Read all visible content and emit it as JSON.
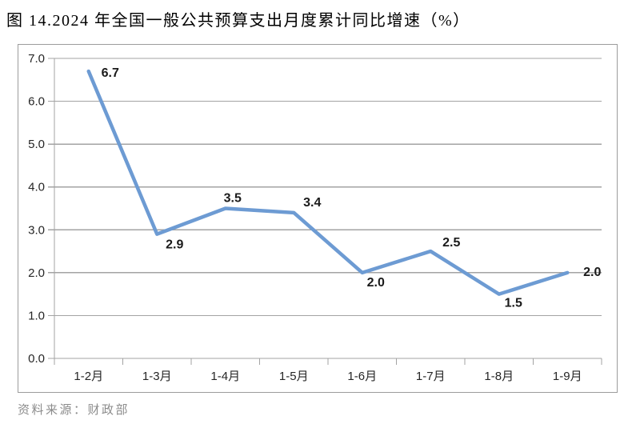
{
  "header": {
    "title": "图 14.2024 年全国一般公共预算支出月度累计同比增速（%）"
  },
  "footer": {
    "source": "资料来源：财政部"
  },
  "chart_data": {
    "type": "line",
    "title": "图 14.2024 年全国一般公共预算支出月度累计同比增速（%）",
    "categories": [
      "1-2月",
      "1-3月",
      "1-4月",
      "1-5月",
      "1-6月",
      "1-7月",
      "1-8月",
      "1-9月"
    ],
    "values": [
      6.7,
      2.9,
      3.5,
      3.4,
      2.0,
      2.5,
      1.5,
      2.0
    ],
    "data_labels": [
      "6.7",
      "2.9",
      "3.5",
      "3.4",
      "2.0",
      "2.5",
      "1.5",
      "2.0"
    ],
    "xlabel": "",
    "ylabel": "",
    "ylim": [
      0.0,
      7.0
    ],
    "ytick_interval": 1.0,
    "yticks": [
      "0.0",
      "1.0",
      "2.0",
      "3.0",
      "4.0",
      "5.0",
      "6.0",
      "7.0"
    ],
    "grid": "horizontal",
    "legend": "none",
    "source_note": "资料来源：财政部",
    "colors": {
      "line": "#6d9bd3",
      "grid": "#a3a3a3",
      "axis": "#a3a3a3",
      "tick": "#a3a3a3",
      "data_label": "#1a1a1a",
      "axis_label": "#262626",
      "border": "#9c9c9c",
      "source_text": "#8c8c8c",
      "background": "#ffffff"
    }
  }
}
